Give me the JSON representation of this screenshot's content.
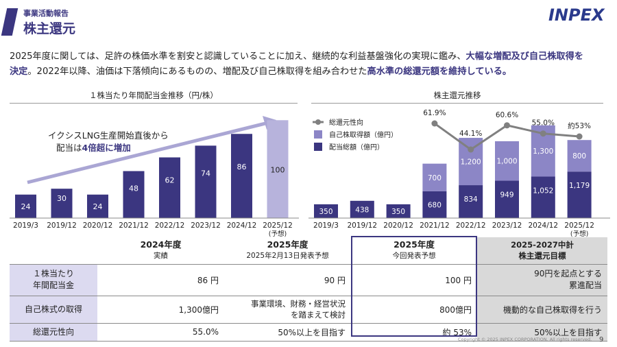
{
  "header": {
    "subtitle": "事業活動報告",
    "title": "株主還元",
    "logo": "INPEX"
  },
  "intro": {
    "line1_plain": "2025年度に関しては、足許の株価水準を割安と認識していることに加え、継続的な利益基盤強化の実現に鑑み、",
    "line1_em": "大幅な増配及び自己株取得を",
    "line2_em_a": "決定",
    "line2_plain": "。2022年以降、油価は下落傾向にあるものの、増配及び自己株取得を組み合わせた",
    "line2_em_b": "高水準の総還元額を維持している。"
  },
  "chart_data": [
    {
      "type": "bar",
      "title": "１株当たり年間配当金推移（円/株）",
      "categories": [
        "2019/3",
        "2019/12",
        "2020/12",
        "2021/12",
        "2022/12",
        "2023/12",
        "2024/12",
        "2025/12"
      ],
      "category_note": "(予想)",
      "values": [
        24,
        30,
        24,
        48,
        62,
        74,
        86,
        100
      ],
      "forecast_index": 7,
      "annotation_line1": "イクシスLNG生産開始直後から",
      "annotation_line2_a": "配当は",
      "annotation_line2_b": "4倍超に増加",
      "colors": {
        "actual": "#3b3680",
        "forecast": "#b7b3dc"
      },
      "ylim": [
        0,
        110
      ]
    },
    {
      "type": "bar",
      "title": "株主還元推移",
      "categories": [
        "2019/3",
        "2019/12",
        "2020/12",
        "2021/12",
        "2022/12",
        "2023/12",
        "2024/12",
        "2025/12"
      ],
      "category_note": "(予想)",
      "series": [
        {
          "name": "配当総額（億円）",
          "values": [
            350,
            438,
            350,
            680,
            834,
            949,
            1052,
            1179
          ],
          "color": "#3b3680"
        },
        {
          "name": "自己株取得額（億円）",
          "values": [
            0,
            0,
            0,
            700,
            1200,
            1000,
            1300,
            800
          ],
          "color": "#8c86c6"
        }
      ],
      "value_labels": {
        "dividend": [
          "350",
          "438",
          "350",
          "680",
          "834",
          "949",
          "1,052",
          "1,179"
        ],
        "buyback": [
          "",
          "",
          "",
          "700",
          "1,200",
          "1,000",
          "1,300",
          "800"
        ]
      },
      "line": {
        "name": "総還元性向",
        "start_index": 3,
        "values": [
          61.9,
          44.1,
          60.6,
          55.0,
          53.0
        ],
        "labels": [
          "61.9%",
          "44.1%",
          "60.6%",
          "55.0%",
          "約53%"
        ],
        "color": "#808080"
      },
      "ylim": [
        0,
        2400
      ]
    }
  ],
  "table": {
    "headers": [
      {
        "title": "2024年度",
        "sub": "実績"
      },
      {
        "title": "2025年度",
        "sub": "2025年2月13日発表予想"
      },
      {
        "title": "2025年度",
        "sub": "今回発表予想"
      },
      {
        "title": "2025-2027中計",
        "sub": "株主還元目標"
      }
    ],
    "rows": [
      {
        "label_a": "１株当たり",
        "label_b": "年間配当金",
        "c1": "86 円",
        "c2": "90 円",
        "c3": "100 円",
        "c4_a": "90円を起点とする",
        "c4_b": "累進配当"
      },
      {
        "label_a": "自己株式の取得",
        "c1": "1,300億円",
        "c2_a": "事業環境、財務・経営状況",
        "c2_b": "を踏まえて検討",
        "c3": "800億円",
        "c4_a": "機動的な自己株取得を行う"
      },
      {
        "label_a": "総還元性向",
        "c1": "55.0%",
        "c2": "50%以上を目指す",
        "c3": "約 53%",
        "c4_a": "50%以上を目指す"
      }
    ]
  },
  "footer": {
    "copyright": "Copyright © 2025 INPEX CORPORATION. All rights reserved.",
    "page": "9"
  }
}
